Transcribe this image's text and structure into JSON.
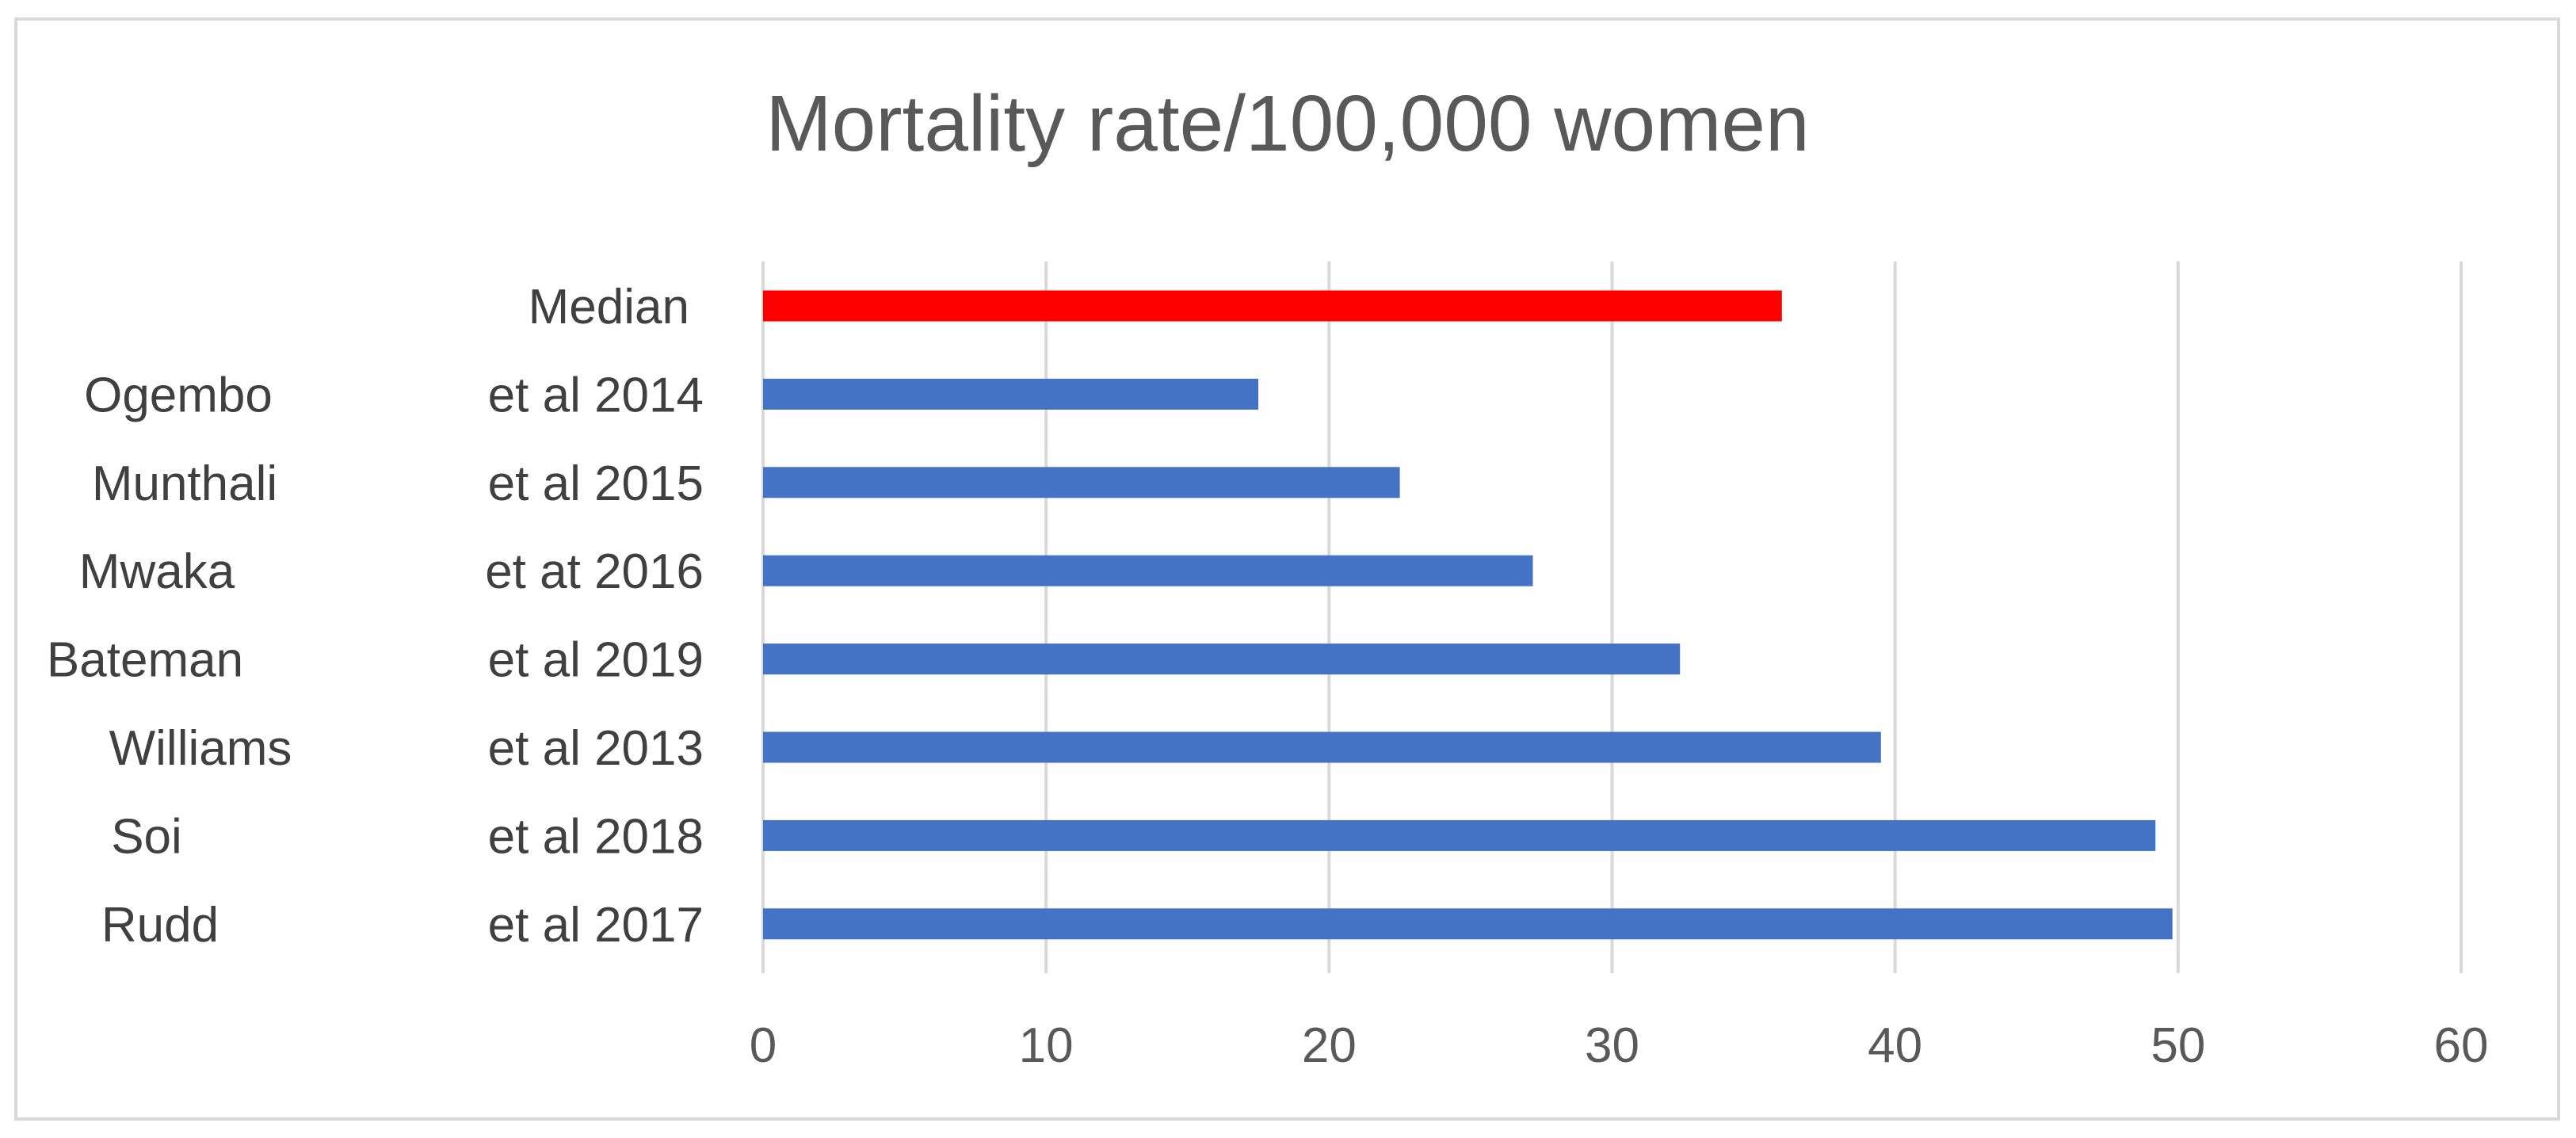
{
  "chart_data": {
    "type": "bar",
    "orientation": "horizontal",
    "title": "Mortality rate/100,000 women",
    "xlabel": "",
    "ylabel": "",
    "xlim": [
      0,
      60
    ],
    "xticks": [
      0,
      10,
      20,
      30,
      40,
      50,
      60
    ],
    "grid": "vertical",
    "legend": "none",
    "categories": [
      {
        "author": "",
        "label": "Median",
        "value": 36,
        "color": "#ff0000"
      },
      {
        "author": "Ogembo",
        "label": "et al 2014",
        "value": 17.5,
        "color": "#4472c4"
      },
      {
        "author": "Munthali",
        "label": "et al 2015",
        "value": 22.5,
        "color": "#4472c4"
      },
      {
        "author": "Mwaka",
        "label": "et at 2016",
        "value": 27.2,
        "color": "#4472c4"
      },
      {
        "author": "Bateman",
        "label": "et al  2019",
        "value": 32.4,
        "color": "#4472c4"
      },
      {
        "author": "Williams",
        "label": "et al 2013",
        "value": 39.5,
        "color": "#4472c4"
      },
      {
        "author": "Soi",
        "label": "et al 2018",
        "value": 49.2,
        "color": "#4472c4"
      },
      {
        "author": "Rudd",
        "label": "et al 2017",
        "value": 49.8,
        "color": "#4472c4"
      }
    ]
  }
}
